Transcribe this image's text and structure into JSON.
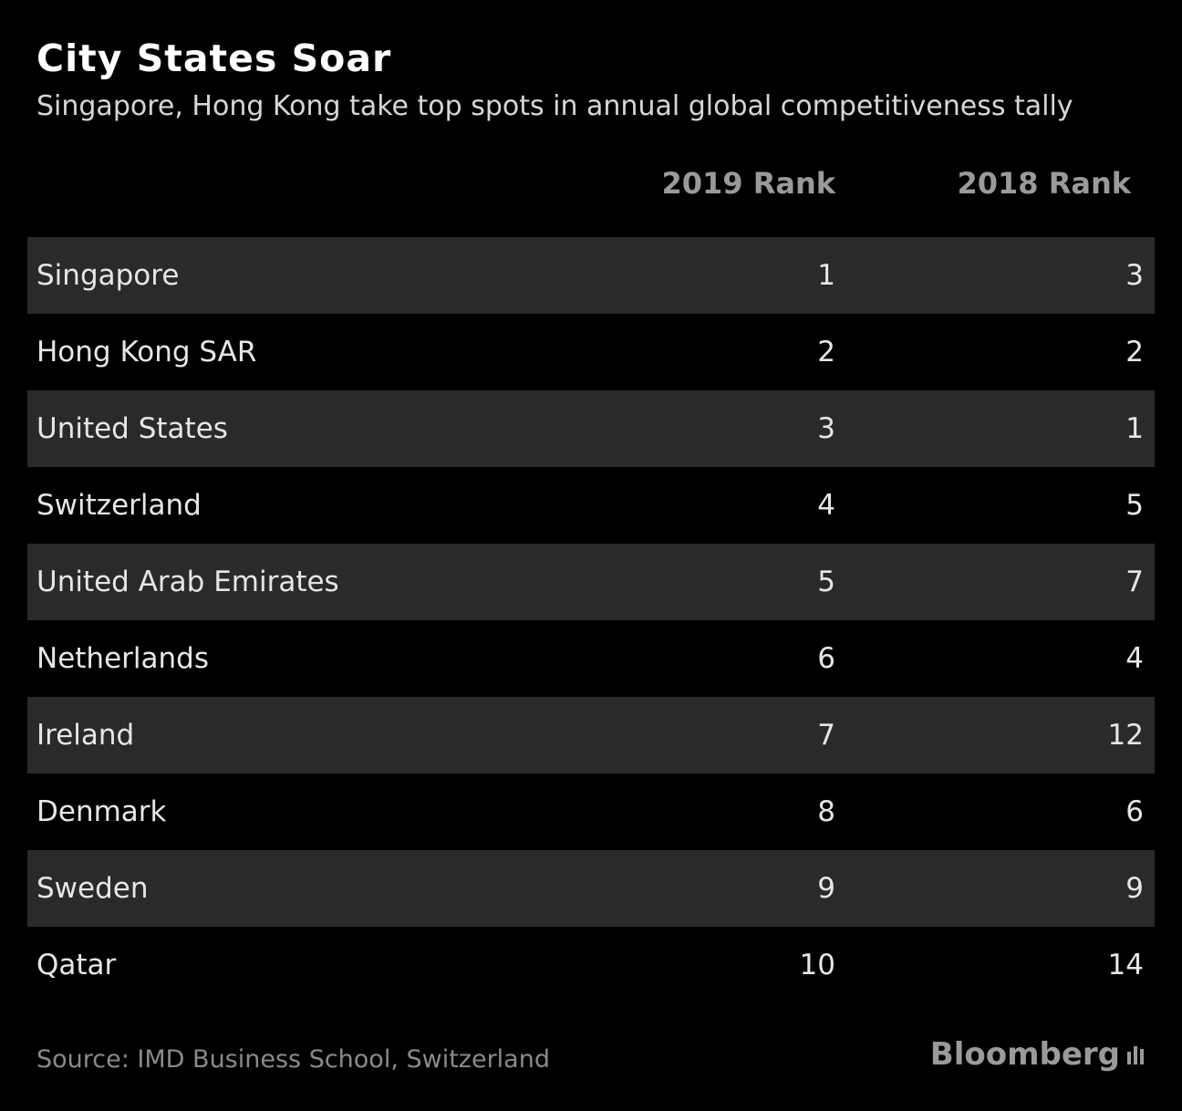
{
  "header": {
    "title": "City States Soar",
    "subtitle": "Singapore, Hong Kong take top spots in annual global competitiveness tally"
  },
  "columns": {
    "col2019": "2019 Rank",
    "col2018": "2018 Rank"
  },
  "chart_data": {
    "type": "table",
    "title": "City States Soar",
    "subtitle": "Singapore, Hong Kong take top spots in annual global competitiveness tally",
    "columns": [
      "",
      "2019 Rank",
      "2018 Rank"
    ],
    "rows": [
      {
        "country": "Singapore",
        "rank_2019": "1",
        "rank_2018": "3"
      },
      {
        "country": "Hong Kong SAR",
        "rank_2019": "2",
        "rank_2018": "2"
      },
      {
        "country": "United States",
        "rank_2019": "3",
        "rank_2018": "1"
      },
      {
        "country": "Switzerland",
        "rank_2019": "4",
        "rank_2018": "5"
      },
      {
        "country": "United Arab Emirates",
        "rank_2019": "5",
        "rank_2018": "7"
      },
      {
        "country": "Netherlands",
        "rank_2019": "6",
        "rank_2018": "4"
      },
      {
        "country": "Ireland",
        "rank_2019": "7",
        "rank_2018": "12"
      },
      {
        "country": "Denmark",
        "rank_2019": "8",
        "rank_2018": "6"
      },
      {
        "country": "Sweden",
        "rank_2019": "9",
        "rank_2018": "9"
      },
      {
        "country": "Qatar",
        "rank_2019": "10",
        "rank_2018": "14"
      }
    ]
  },
  "footer": {
    "source": "Source: IMD Business School, Switzerland",
    "brand": "Bloomberg"
  },
  "colors": {
    "background": "#000000",
    "row_shade": "#2a2a2a",
    "text": "#e6e6e6",
    "header_text": "#9a9a9a",
    "source_text": "#8a8a8a"
  }
}
